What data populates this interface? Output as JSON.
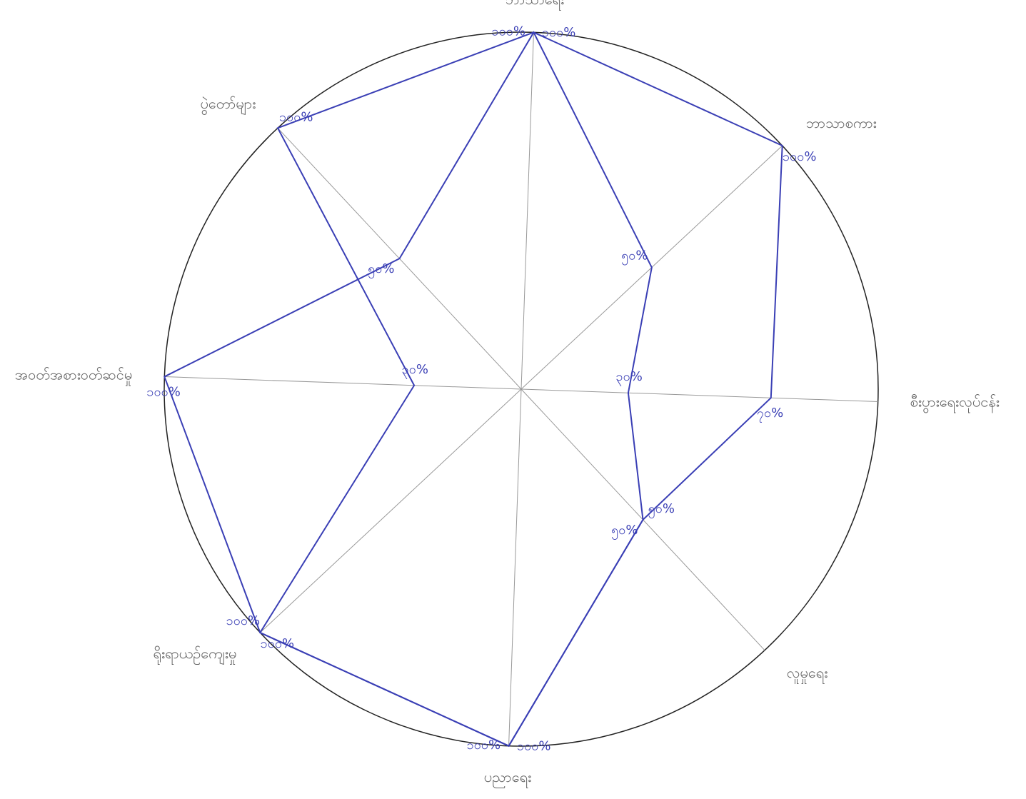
{
  "chart_data": {
    "type": "radar",
    "categories": [
      "ဘာသာရေး",
      "ဘာသာစကား",
      "စီးပွားရေးလုပ်ငန်း",
      "လူမှုရေး",
      "ပညာရေး",
      "ရိုးရာယဉ်ကျေးမှု",
      "အဝတ်အစားဝတ်ဆင်မှု",
      "ပွဲတော်များ"
    ],
    "ylim": [
      0,
      100
    ],
    "series": [
      {
        "color": "#3a3fb5",
        "values": [
          100,
          100,
          70,
          50,
          100,
          100,
          30,
          100
        ],
        "value_labels": [
          "၁၀၀%",
          "၁၀၀%",
          "၇၀%",
          "၅၀%",
          "၁၀၀%",
          "၁၀၀%",
          "၃၀%",
          "၁၀၀%"
        ]
      },
      {
        "color": "#3a3fb5",
        "values": [
          100,
          50,
          30,
          50,
          100,
          100,
          100,
          50
        ],
        "value_labels": [
          "၁၀၀%",
          "၅၀%",
          "၃၀%",
          "၅၀%",
          "၁၀၀%",
          "၁၀၀%",
          "၁၀၀%",
          "၅၀%"
        ]
      }
    ]
  }
}
